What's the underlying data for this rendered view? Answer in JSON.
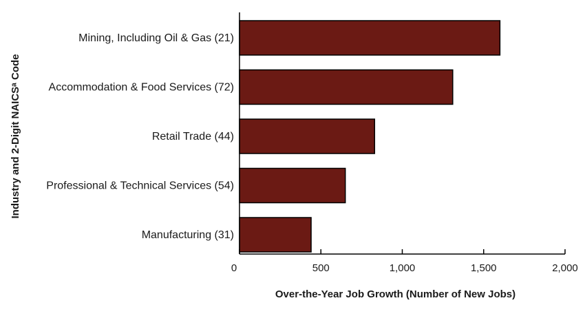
{
  "chart_data": {
    "type": "bar",
    "orientation": "horizontal",
    "categories": [
      "Mining, Including Oil & Gas (21)",
      "Accommodation & Food Services (72)",
      "Retail Trade (44)",
      "Professional & Technical Services (54)",
      "Manufacturing (31)"
    ],
    "values": [
      1600,
      1310,
      830,
      650,
      440
    ],
    "xlabel": "Over-the-Year Job Growth (Number of New Jobs)",
    "ylabel": "Industry and 2-Digit NAICSᵃ Code",
    "xlim": [
      0,
      2000
    ],
    "xticks": [
      0,
      500,
      1000,
      1500,
      2000
    ],
    "xtick_labels": [
      "0",
      "500",
      "1,000",
      "1,500",
      "2,000"
    ],
    "bar_color": "#6b1a14",
    "grid": false,
    "legend": "none"
  }
}
